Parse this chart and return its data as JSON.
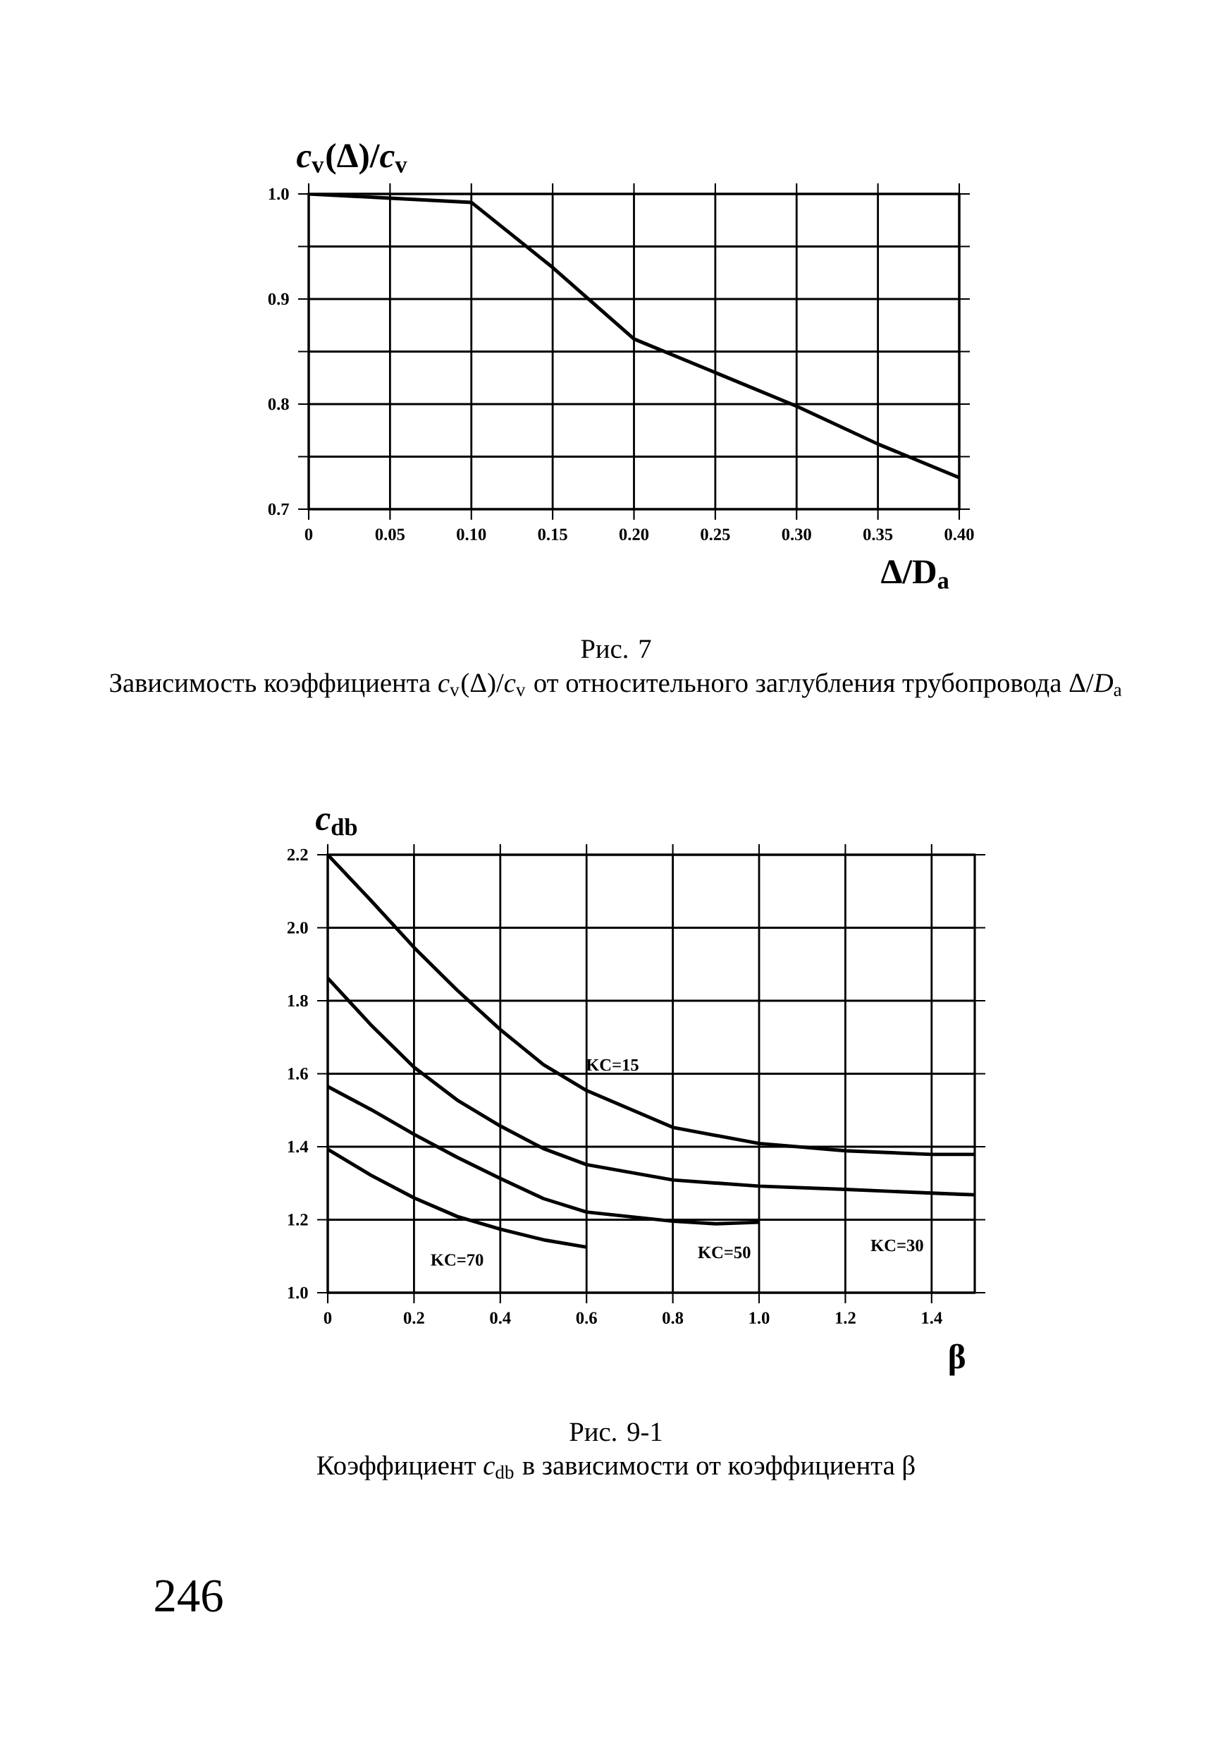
{
  "chart_data": [
    {
      "type": "line",
      "xlabel": "Δ/D$_{a}$",
      "ylabel": "*c*$_{v}$(Δ)/*c*$_{v}$",
      "xlim": [
        0,
        0.4
      ],
      "ylim": [
        0.7,
        1.0
      ],
      "xticks": [
        {
          "value": 0,
          "label": "0"
        },
        {
          "value": 0.05,
          "label": "0.05"
        },
        {
          "value": 0.1,
          "label": "0.10"
        },
        {
          "value": 0.15,
          "label": "0.15"
        },
        {
          "value": 0.2,
          "label": "0.20"
        },
        {
          "value": 0.25,
          "label": "0.25"
        },
        {
          "value": 0.3,
          "label": "0.30"
        },
        {
          "value": 0.35,
          "label": "0.35"
        },
        {
          "value": 0.4,
          "label": "0.40"
        }
      ],
      "yticks": [
        {
          "value": 0.7,
          "label": "0.7"
        },
        {
          "value": 0.75,
          "label": null
        },
        {
          "value": 0.8,
          "label": "0.8"
        },
        {
          "value": 0.85,
          "label": null
        },
        {
          "value": 0.9,
          "label": "0.9"
        },
        {
          "value": 0.95,
          "label": null
        },
        {
          "value": 1.0,
          "label": "1.0"
        }
      ],
      "grid": true,
      "series": [
        {
          "color": "#000000",
          "x": [
            0,
            0.05,
            0.1,
            0.15,
            0.2,
            0.25,
            0.3,
            0.35,
            0.4
          ],
          "values": [
            1.0,
            0.996,
            0.992,
            0.93,
            0.862,
            0.83,
            0.798,
            0.762,
            0.73
          ]
        }
      ],
      "annotations": [
        "Рис. 7",
        "Зависимость коэффициента *c*$_{v}$(Δ)/*c*$_{v}$ от относительного заглубления трубопровода Δ/*D*$_{a}$"
      ]
    },
    {
      "type": "line",
      "xlabel": "β",
      "ylabel": "*c*$_{db}$",
      "xlim": [
        0,
        1.5
      ],
      "ylim": [
        1.0,
        2.2
      ],
      "xticks": [
        {
          "value": 0,
          "label": "0"
        },
        {
          "value": 0.2,
          "label": "0.2"
        },
        {
          "value": 0.4,
          "label": "0.4"
        },
        {
          "value": 0.6,
          "label": "0.6"
        },
        {
          "value": 0.8,
          "label": "0.8"
        },
        {
          "value": 1.0,
          "label": "1.0"
        },
        {
          "value": 1.2,
          "label": "1.2"
        },
        {
          "value": 1.4,
          "label": "1.4"
        }
      ],
      "yticks": [
        {
          "value": 1.0,
          "label": "1.0"
        },
        {
          "value": 1.2,
          "label": "1.2"
        },
        {
          "value": 1.4,
          "label": "1.4"
        },
        {
          "value": 1.6,
          "label": "1.6"
        },
        {
          "value": 1.8,
          "label": "1.8"
        },
        {
          "value": 2.0,
          "label": "2.0"
        },
        {
          "value": 2.2,
          "label": "2.2"
        }
      ],
      "grid": true,
      "series": [
        {
          "name": "KC=15",
          "color": "#000000",
          "x": [
            0,
            0.1,
            0.2,
            0.3,
            0.4,
            0.5,
            0.6,
            0.8,
            1.0,
            1.2,
            1.4,
            1.5
          ],
          "values": [
            2.2,
            2.075,
            1.946,
            1.829,
            1.721,
            1.625,
            1.554,
            1.453,
            1.409,
            1.389,
            1.379,
            1.379
          ]
        },
        {
          "name": "KC=30",
          "color": "#000000",
          "x": [
            0,
            0.1,
            0.2,
            0.3,
            0.4,
            0.5,
            0.6,
            0.8,
            1.0,
            1.2,
            1.4,
            1.5
          ],
          "values": [
            1.862,
            1.734,
            1.618,
            1.528,
            1.457,
            1.395,
            1.351,
            1.309,
            1.292,
            1.283,
            1.273,
            1.268
          ]
        },
        {
          "name": "KC=50",
          "color": "#000000",
          "x": [
            0,
            0.1,
            0.2,
            0.3,
            0.4,
            0.5,
            0.6,
            0.8,
            0.9,
            1.0
          ],
          "values": [
            1.565,
            1.502,
            1.434,
            1.371,
            1.313,
            1.258,
            1.221,
            1.196,
            1.189,
            1.193
          ]
        },
        {
          "name": "KC=70",
          "color": "#000000",
          "x": [
            0,
            0.1,
            0.2,
            0.3,
            0.4,
            0.5,
            0.6
          ],
          "values": [
            1.393,
            1.322,
            1.26,
            1.209,
            1.174,
            1.145,
            1.125
          ]
        }
      ],
      "annotations": [
        "Рис. 9-1",
        "Коэффициент *c*$_{db}$ в зависимости от коэффициента β",
        "246"
      ]
    }
  ]
}
